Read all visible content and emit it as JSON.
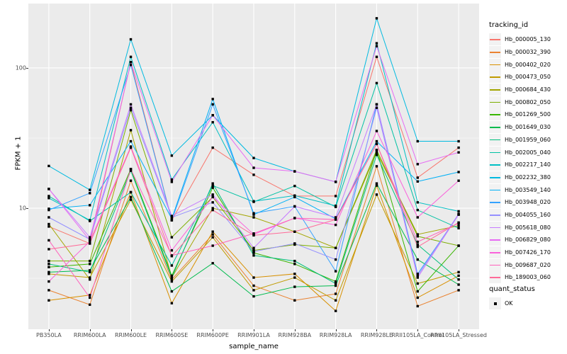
{
  "figure": {
    "background": "#FFFFFF",
    "panel_background": "#EBEBEB",
    "gridline_color": "#FFFFFF",
    "point_color": "#000000",
    "tick_text_color": "#4d4d4d"
  },
  "axes": {
    "y_title": "FPKM + 1",
    "x_title": "sample_name"
  },
  "legend": {
    "tracking_title": "tracking_id",
    "quant_title": "quant_status",
    "quant_items": [
      {
        "label": "OK",
        "marker": "black-square"
      }
    ]
  },
  "chart_data": {
    "type": "line",
    "title": "",
    "xlabel": "sample_name",
    "ylabel": "FPKM + 1",
    "x_scale": "categorical",
    "y_scale": "log10",
    "ylim": [
      1.37,
      288
    ],
    "y_major_ticks": [
      10,
      100
    ],
    "y_minor_ticks": [
      3.162,
      31.62
    ],
    "grid": true,
    "legend_position": "right",
    "point_marker": "black-square",
    "categories": [
      "PB350LA",
      "RRIM600LA",
      "RRIM600LE",
      "RRIM600SE",
      "RRIM600PE",
      "RRIM901LA",
      "RRIM928BA",
      "RRIM928LA",
      "RRIM928LE",
      "RRII105LA_Control",
      "RRII105LA_Stressed"
    ],
    "series": [
      {
        "name": "Hb_000005_130",
        "color": "#F8766D",
        "values": [
          7.4,
          5.6,
          110,
          8.2,
          27,
          17.3,
          12.2,
          12.2,
          120,
          16.5,
          27
        ]
      },
      {
        "name": "Hb_000032_390",
        "color": "#EA8331",
        "values": [
          2.6,
          2.05,
          15.7,
          3.1,
          6.5,
          2.8,
          2.2,
          2.45,
          19.9,
          2.0,
          2.6
        ]
      },
      {
        "name": "Hb_000402_020",
        "color": "#D89000",
        "values": [
          2.2,
          2.4,
          13,
          2.1,
          6.8,
          3.2,
          3.4,
          1.85,
          14.5,
          2.3,
          3.3
        ]
      },
      {
        "name": "Hb_000473_050",
        "color": "#C09B00",
        "values": [
          3.4,
          3.2,
          11.5,
          3.0,
          6.2,
          2.6,
          3.2,
          2.2,
          12.5,
          2.9,
          3.5
        ]
      },
      {
        "name": "Hb_000684_430",
        "color": "#A3A500",
        "values": [
          7.7,
          3.1,
          36,
          3.2,
          10,
          8.6,
          6.8,
          5.2,
          25,
          6.5,
          7.5
        ]
      },
      {
        "name": "Hb_000802_050",
        "color": "#7CAE00",
        "values": [
          4.2,
          4.2,
          50,
          6.2,
          12,
          5.0,
          5.5,
          5.2,
          26,
          6.3,
          5.4
        ]
      },
      {
        "name": "Hb_001269_500",
        "color": "#39B600",
        "values": [
          3.8,
          4.0,
          19,
          3.3,
          14,
          4.8,
          4.0,
          3.0,
          26,
          2.55,
          5.4
        ]
      },
      {
        "name": "Hb_001649_030",
        "color": "#00BB4E",
        "values": [
          3.5,
          3.6,
          12,
          2.55,
          4.05,
          2.35,
          2.75,
          2.8,
          15,
          4.3,
          2.85
        ]
      },
      {
        "name": "Hb_001959_060",
        "color": "#00BF7D",
        "values": [
          4.0,
          3.5,
          18.5,
          3.2,
          15,
          4.6,
          4.2,
          2.9,
          24,
          5.5,
          3.1
        ]
      },
      {
        "name": "Hb_002005_040",
        "color": "#00C1A3",
        "values": [
          12.2,
          8.1,
          13,
          3.9,
          14.5,
          11.1,
          14.4,
          10.2,
          78,
          9.7,
          7.2
        ]
      },
      {
        "name": "Hb_002217_140",
        "color": "#00BFC4",
        "values": [
          11.8,
          8.2,
          120,
          16,
          41,
          11.2,
          12.3,
          10.4,
          150,
          11,
          9.5
        ]
      },
      {
        "name": "Hb_002232_380",
        "color": "#00BAE0",
        "values": [
          20,
          13.5,
          160,
          23.7,
          46,
          22.8,
          18.3,
          15.4,
          226,
          30,
          30
        ]
      },
      {
        "name": "Hb_003549_140",
        "color": "#00B0F6",
        "values": [
          9.9,
          10.5,
          30,
          8.4,
          60,
          9.0,
          12.0,
          8.4,
          30,
          15.5,
          18.1
        ]
      },
      {
        "name": "Hb_003948_020",
        "color": "#35A2FF",
        "values": [
          9.7,
          12.8,
          105,
          8.2,
          55,
          9.2,
          10.3,
          3.55,
          55,
          3.4,
          9.0
        ]
      },
      {
        "name": "Hb_004055_160",
        "color": "#9590FF",
        "values": [
          8.6,
          6.0,
          52,
          8.6,
          11,
          4.9,
          5.6,
          4.3,
          52,
          3.3,
          9.1
        ]
      },
      {
        "name": "Hb_005618_080",
        "color": "#C77CFF",
        "values": [
          13.7,
          6.2,
          55,
          8.8,
          12.5,
          5.2,
          10.3,
          8.6,
          55,
          3.2,
          9.0
        ]
      },
      {
        "name": "Hb_006829_080",
        "color": "#E76BF3",
        "values": [
          13.7,
          5.9,
          110,
          15.4,
          46,
          19.4,
          18.3,
          15.4,
          143,
          20.6,
          25
        ]
      },
      {
        "name": "Hb_007426_170",
        "color": "#FA62DB",
        "values": [
          3.0,
          5.8,
          27.5,
          5.0,
          12,
          6.5,
          8.5,
          7.6,
          35.5,
          8.6,
          15.7
        ]
      },
      {
        "name": "Hb_009687_020",
        "color": "#FF62BC",
        "values": [
          5.9,
          2.3,
          19,
          4.6,
          5.4,
          6.6,
          8.5,
          8.3,
          28.7,
          5.75,
          7.8
        ]
      },
      {
        "name": "Hb_189003_060",
        "color": "#FF6A98",
        "values": [
          5.1,
          5.6,
          27,
          4.55,
          9.7,
          6.4,
          6.8,
          8.3,
          28.7,
          5.3,
          7.9
        ]
      }
    ]
  }
}
